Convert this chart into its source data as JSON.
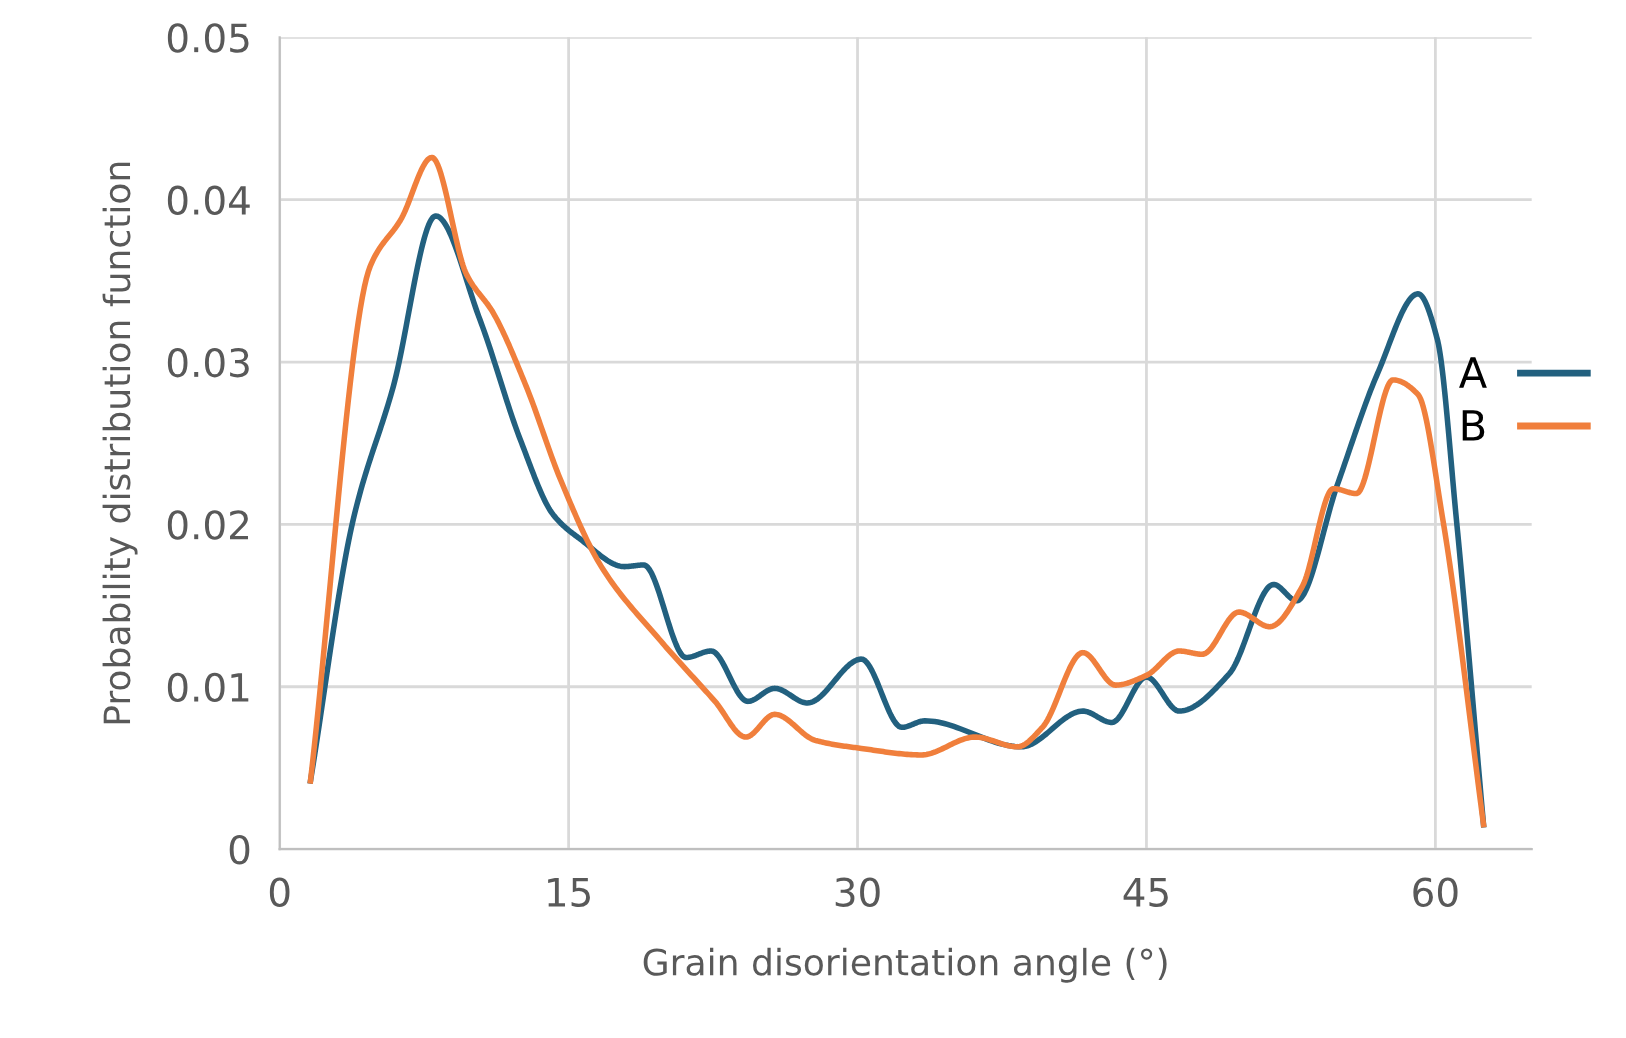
{
  "chart_data": {
    "type": "line",
    "xlabel": "Grain disorientation angle (°)",
    "ylabel": "Probability distribution function",
    "xlim": [
      0,
      65
    ],
    "xticks": [
      0,
      15,
      30,
      45,
      60
    ],
    "ylim": [
      0,
      0.05
    ],
    "yticks": [
      0,
      0.01,
      0.02,
      0.03,
      0.04,
      0.05
    ],
    "grid": true,
    "legend": "right",
    "marker": "none",
    "line_style": "solid",
    "series": [
      {
        "name": "A",
        "color": "#22607f",
        "x": [
          1.6,
          3.8,
          5.9,
          8.1,
          10.4,
          12.5,
          14.2,
          15.6,
          17.9,
          18.9,
          21.1,
          22.4,
          24.3,
          25.7,
          27.4,
          30.2,
          32.3,
          33.5,
          38.5,
          41.7,
          43.2,
          45,
          46.7,
          49.3,
          51.6,
          52.8,
          54.9,
          57,
          59.1,
          60.1,
          61.1,
          62.5
        ],
        "values": [
          0.0042,
          0.0202,
          0.0285,
          0.039,
          0.0326,
          0.0252,
          0.0206,
          0.0191,
          0.0174,
          0.0175,
          0.0118,
          0.0122,
          0.0091,
          0.0099,
          0.009,
          0.0117,
          0.0075,
          0.0079,
          0.0063,
          0.0085,
          0.0078,
          0.0106,
          0.0085,
          0.0108,
          0.0163,
          0.0153,
          0.0224,
          0.0293,
          0.0342,
          0.0314,
          0.0202,
          0.0015
        ]
      },
      {
        "name": "B",
        "color": "#f07f3c",
        "x": [
          1.6,
          4.7,
          6.3,
          7.9,
          9.7,
          11.1,
          12.8,
          14.6,
          16.7,
          19.8,
          22.6,
          24.2,
          25.7,
          27.8,
          30.2,
          33.3,
          36.1,
          38.3,
          39.6,
          41.7,
          43.4,
          45,
          46.7,
          47.9,
          49.8,
          51.4,
          53.1,
          54.7,
          55.9,
          57.8,
          59.1,
          60.4,
          62.5
        ],
        "values": [
          0.0042,
          0.0359,
          0.0388,
          0.0426,
          0.0354,
          0.033,
          0.0285,
          0.0227,
          0.0174,
          0.0128,
          0.0091,
          0.0069,
          0.0083,
          0.0067,
          0.0062,
          0.0058,
          0.0069,
          0.0063,
          0.0075,
          0.0121,
          0.0101,
          0.0107,
          0.0122,
          0.012,
          0.0146,
          0.0137,
          0.0162,
          0.0222,
          0.0219,
          0.0289,
          0.028,
          0.0202,
          0.0015
        ]
      }
    ]
  }
}
